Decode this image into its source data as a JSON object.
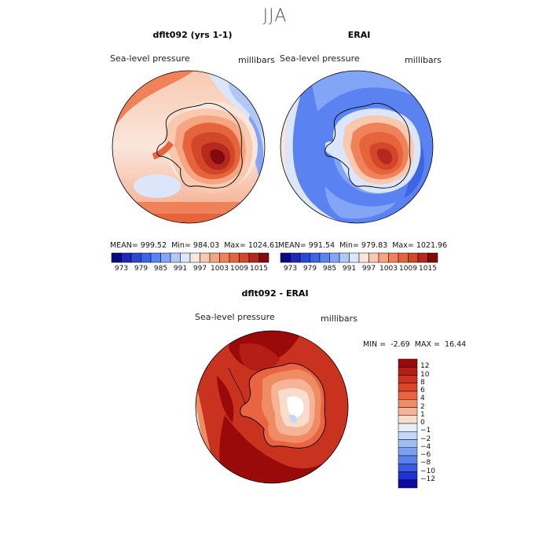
{
  "figure": {
    "season": "JJA"
  },
  "chart_data": [
    {
      "type": "heatmap",
      "title": "dflt092 (yrs 1-1)",
      "variable": "Sea-level pressure",
      "units": "millibars",
      "projection": "south-polar stereographic",
      "stats": {
        "mean_text": "MEAN= 999.52",
        "min_text": "Min= 984.03",
        "max_text": "Max= 1024.61",
        "mean": 999.52,
        "min": 984.03,
        "max": 1024.61
      },
      "colorbar": {
        "tick_labels": [
          "973",
          "979",
          "985",
          "991",
          "997",
          "1003",
          "1009",
          "1015"
        ],
        "levels": [
          973,
          976,
          979,
          982,
          985,
          988,
          991,
          994,
          997,
          1000,
          1003,
          1006,
          1009,
          1012,
          1015
        ],
        "colors": [
          "#0a0a82",
          "#1e28b4",
          "#2a46d2",
          "#3c64e6",
          "#5a82f0",
          "#82a5f5",
          "#afc8f8",
          "#dce6fb",
          "#fbe6dc",
          "#f8c8af",
          "#f5a582",
          "#f0825a",
          "#e6643c",
          "#d2462a",
          "#b4281e",
          "#820a0a"
        ]
      }
    },
    {
      "type": "heatmap",
      "title": "ERAI",
      "variable": "Sea-level pressure",
      "units": "millibars",
      "projection": "south-polar stereographic",
      "stats": {
        "mean_text": "MEAN= 991.54",
        "min_text": "Min= 979.83",
        "max_text": "Max= 1021.96",
        "mean": 991.54,
        "min": 979.83,
        "max": 1021.96
      },
      "colorbar": {
        "tick_labels": [
          "973",
          "979",
          "985",
          "991",
          "997",
          "1003",
          "1009",
          "1015"
        ],
        "levels": [
          973,
          976,
          979,
          982,
          985,
          988,
          991,
          994,
          997,
          1000,
          1003,
          1006,
          1009,
          1012,
          1015
        ],
        "colors": [
          "#0a0a82",
          "#1e28b4",
          "#2a46d2",
          "#3c64e6",
          "#5a82f0",
          "#82a5f5",
          "#afc8f8",
          "#dce6fb",
          "#fbe6dc",
          "#f8c8af",
          "#f5a582",
          "#f0825a",
          "#e6643c",
          "#d2462a",
          "#b4281e",
          "#820a0a"
        ]
      }
    },
    {
      "type": "heatmap",
      "title": "dflt092 - ERAI",
      "variable": "Sea-level pressure",
      "units": "millibars",
      "projection": "south-polar stereographic",
      "stats": {
        "min_label": "MIN =",
        "min": -2.69,
        "max_label": "MAX =",
        "max": 16.44
      },
      "colorbar": {
        "orientation": "vertical",
        "tick_labels": [
          "12",
          "10",
          "8",
          "6",
          "4",
          "2",
          "1",
          "0",
          "−1",
          "−2",
          "−4",
          "−6",
          "−8",
          "−10",
          "−12"
        ],
        "levels": [
          12,
          10,
          8,
          6,
          4,
          2,
          1,
          0,
          -1,
          -2,
          -4,
          -6,
          -8,
          -10,
          -12
        ],
        "colors": [
          "#9b0a0a",
          "#b41e14",
          "#c8321e",
          "#dc4628",
          "#eb6441",
          "#f08c64",
          "#f5b496",
          "#fadccd",
          "#e6eefa",
          "#c3d7f8",
          "#a0bef5",
          "#7da0f0",
          "#5a82eb",
          "#3c5ae1",
          "#1e32d2",
          "#0a0aa0"
        ]
      }
    }
  ]
}
